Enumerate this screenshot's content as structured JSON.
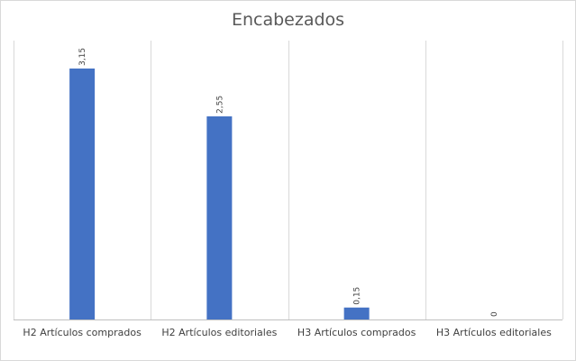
{
  "chart_data": {
    "type": "bar",
    "title": "Encabezados",
    "categories": [
      "H2 Artículos comprados",
      "H2 Artículos editoriales",
      "H3 Artículos comprados",
      "H3 Artículos editoriales"
    ],
    "values": [
      3.15,
      2.55,
      0.15,
      0
    ],
    "data_labels": [
      "3,15",
      "2,55",
      "0,15",
      "0"
    ],
    "xlabel": "",
    "ylabel": "",
    "ylim": [
      0,
      3.5
    ],
    "grid": "vertical category separators",
    "legend": "none",
    "bar_color": "#4472c4"
  }
}
